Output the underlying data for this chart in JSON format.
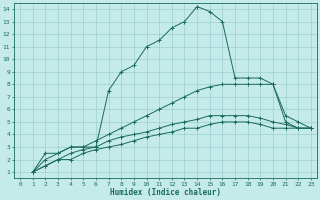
{
  "title": "",
  "xlabel": "Humidex (Indice chaleur)",
  "bg_color": "#c5eaea",
  "grid_color": "#9dcfcf",
  "line_color": "#1a6b5a",
  "xlim": [
    -0.5,
    23.5
  ],
  "ylim": [
    0.5,
    14.5
  ],
  "xticks": [
    0,
    1,
    2,
    3,
    4,
    5,
    6,
    7,
    8,
    9,
    10,
    11,
    12,
    13,
    14,
    15,
    16,
    17,
    18,
    19,
    20,
    21,
    22,
    23
  ],
  "yticks": [
    1,
    2,
    3,
    4,
    5,
    6,
    7,
    8,
    9,
    10,
    11,
    12,
    13,
    14
  ],
  "series": [
    {
      "x": [
        1,
        2,
        3,
        4,
        5,
        6,
        7,
        8,
        9,
        10,
        11,
        12,
        13,
        14,
        15,
        16,
        17,
        18,
        19,
        20,
        21,
        22,
        23
      ],
      "y": [
        1,
        2.5,
        2.5,
        3,
        3,
        3,
        7.5,
        9,
        9.5,
        11,
        11.5,
        12.5,
        13,
        14.2,
        13.8,
        13,
        8.5,
        8.5,
        8.5,
        8,
        5.5,
        5,
        4.5
      ]
    },
    {
      "x": [
        1,
        2,
        3,
        4,
        5,
        6,
        7,
        8,
        9,
        10,
        11,
        12,
        13,
        14,
        15,
        16,
        17,
        18,
        19,
        20,
        21,
        22,
        23
      ],
      "y": [
        1,
        2,
        2.5,
        3,
        3,
        3.5,
        4,
        4.5,
        5,
        5.5,
        6,
        6.5,
        7,
        7.5,
        7.8,
        8,
        8,
        8,
        8,
        8,
        5,
        4.5,
        4.5
      ]
    },
    {
      "x": [
        1,
        2,
        3,
        4,
        5,
        6,
        7,
        8,
        9,
        10,
        11,
        12,
        13,
        14,
        15,
        16,
        17,
        18,
        19,
        20,
        21,
        22,
        23
      ],
      "y": [
        1,
        1.5,
        2,
        2.5,
        2.8,
        3,
        3.5,
        3.8,
        4,
        4.2,
        4.5,
        4.8,
        5,
        5.2,
        5.5,
        5.5,
        5.5,
        5.5,
        5.3,
        5,
        4.8,
        4.5,
        4.5
      ]
    },
    {
      "x": [
        1,
        2,
        3,
        4,
        5,
        6,
        7,
        8,
        9,
        10,
        11,
        12,
        13,
        14,
        15,
        16,
        17,
        18,
        19,
        20,
        21,
        22,
        23
      ],
      "y": [
        1,
        1.5,
        2,
        2,
        2.5,
        2.8,
        3,
        3.2,
        3.5,
        3.8,
        4,
        4.2,
        4.5,
        4.5,
        4.8,
        5,
        5,
        5,
        4.8,
        4.5,
        4.5,
        4.5,
        4.5
      ]
    }
  ]
}
